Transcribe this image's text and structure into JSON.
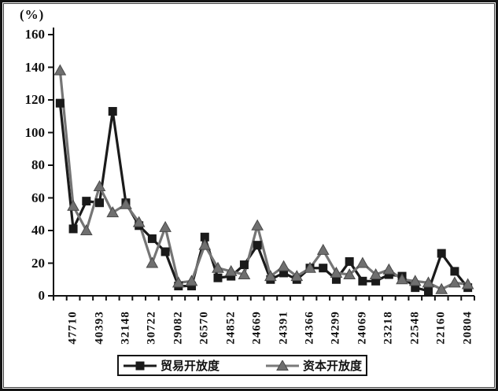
{
  "chart_data": {
    "type": "line",
    "title": "",
    "y_axis_title": "(%)",
    "ylim": [
      0,
      160
    ],
    "y_ticks": [
      160,
      140,
      120,
      100,
      80,
      60,
      40,
      20,
      0
    ],
    "grid": "off",
    "legend_position": "bottom",
    "x_tick_labels": [
      "47710",
      "40393",
      "32148",
      "30722",
      "29082",
      "26570",
      "24852",
      "24669",
      "24391",
      "24366",
      "24299",
      "24069",
      "23218",
      "22548",
      "22160",
      "20804"
    ],
    "x_labels_under_every_second_point": true,
    "point_count": 32,
    "series": [
      {
        "name": "贸易开放度",
        "marker": "square",
        "color": "#1a1a1a",
        "values": [
          118,
          41,
          58,
          57,
          113,
          57,
          43,
          35,
          27,
          6,
          6,
          36,
          11,
          12,
          19,
          31,
          10,
          14,
          10,
          17,
          17,
          10,
          21,
          9,
          9,
          13,
          12,
          5,
          3,
          26,
          15,
          5
        ]
      },
      {
        "name": "资本开放度",
        "marker": "triangle",
        "color": "#757575",
        "values": [
          138,
          55,
          40,
          67,
          51,
          56,
          45,
          20,
          42,
          8,
          9,
          31,
          17,
          15,
          13,
          43,
          12,
          18,
          12,
          17,
          28,
          14,
          13,
          20,
          13,
          16,
          10,
          9,
          8,
          4,
          8,
          7
        ]
      }
    ]
  }
}
